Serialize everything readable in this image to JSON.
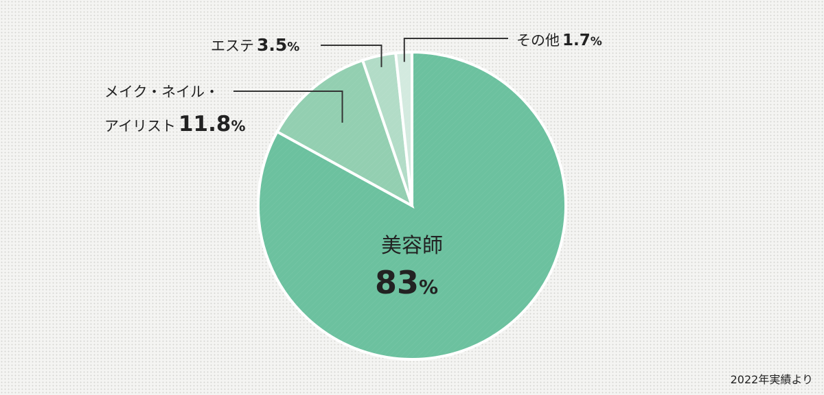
{
  "chart_data": {
    "type": "pie",
    "unit": "%",
    "slices": [
      {
        "label": "美容師",
        "value": 83,
        "color": "#6cc19f"
      },
      {
        "label": "メイク・ネイル・アイリスト",
        "label_lines": [
          "メイク・ネイル・",
          "アイリスト"
        ],
        "value": 11.8,
        "color": "#93cfb1"
      },
      {
        "label": "エステ",
        "value": 3.5,
        "color": "#b2dcc7"
      },
      {
        "label": "その他",
        "value": 1.7,
        "color": "#d3eadf"
      }
    ],
    "note": "2022年実績より"
  }
}
